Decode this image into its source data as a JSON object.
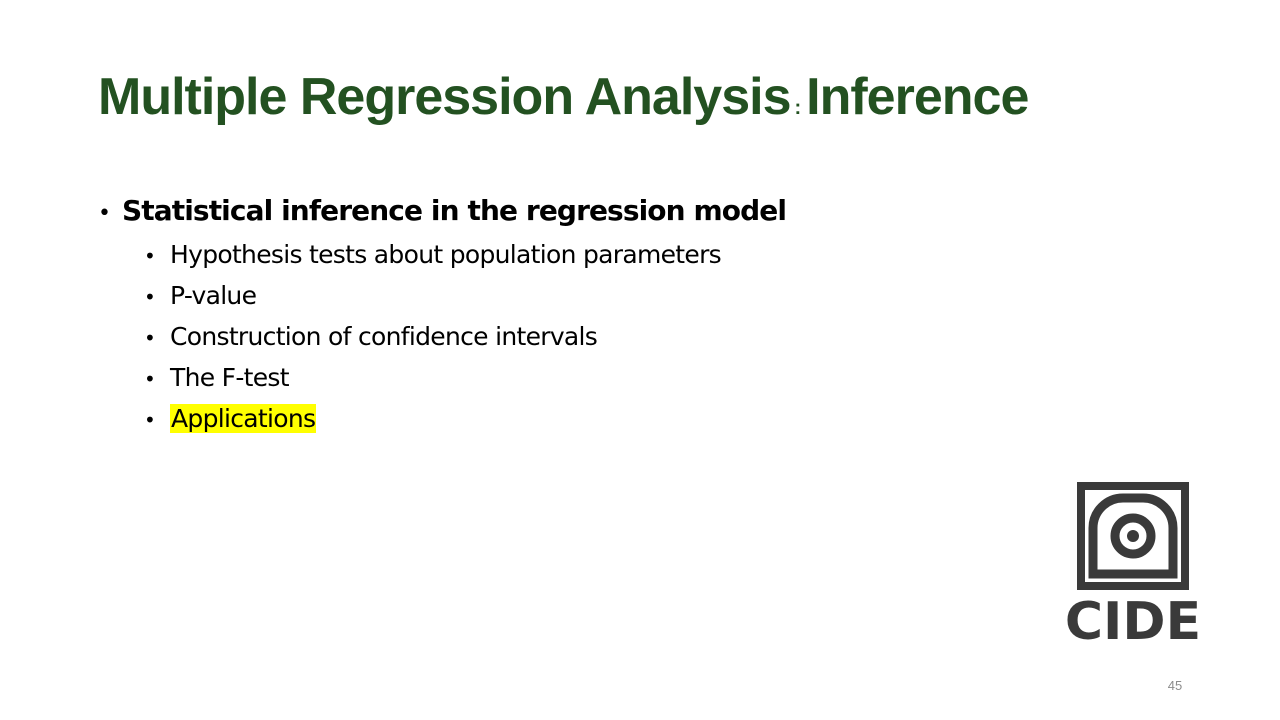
{
  "slide": {
    "title_main": "Multiple Regression Analysis",
    "title_separator": ":",
    "title_sub": "Inference",
    "bullet_main": "Statistical inference in the regression model",
    "sub_items": [
      {
        "label": "Hypothesis tests about population parameters",
        "highlighted": false
      },
      {
        "label": "P-value",
        "highlighted": false
      },
      {
        "label": "Construction of confidence intervals",
        "highlighted": false
      },
      {
        "label": "The F-test",
        "highlighted": false
      },
      {
        "label": "Applications",
        "highlighted": true
      }
    ],
    "logo_text": "CIDE",
    "page_number": "45"
  },
  "colors": {
    "title": "#235121",
    "highlight": "#ffff00",
    "logo": "#3a3a3a",
    "page_number": "#8c8c8c"
  }
}
